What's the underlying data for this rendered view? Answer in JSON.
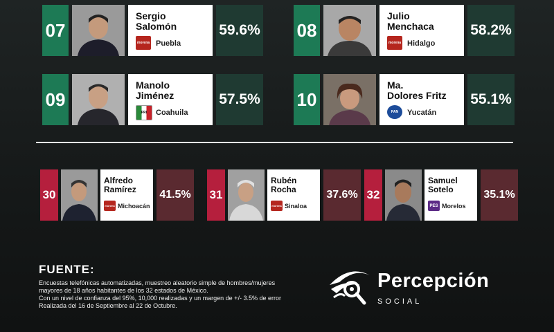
{
  "top_candidates": [
    {
      "rank": "07",
      "first": "Sergio",
      "last": "Salomón",
      "party": "morena",
      "state": "Puebla",
      "pct": "59.6%"
    },
    {
      "rank": "08",
      "first": "Julio",
      "last": "Menchaca",
      "party": "morena",
      "state": "Hidalgo",
      "pct": "58.2%"
    },
    {
      "rank": "09",
      "first": "Manolo",
      "last": "Jiménez",
      "party": "PRI",
      "state": "Coahuila",
      "pct": "57.5%"
    },
    {
      "rank": "10",
      "first": "Ma.",
      "last": "Dolores Fritz",
      "party": "PAN",
      "state": "Yucatán",
      "pct": "55.1%"
    }
  ],
  "bottom_candidates": [
    {
      "rank": "30",
      "first": "Alfredo",
      "last": "Ramírez",
      "party": "morena",
      "state": "Michoacán",
      "pct": "41.5%"
    },
    {
      "rank": "31",
      "first": "Rubén",
      "last": "Rocha",
      "party": "morena",
      "state": "Sinaloa",
      "pct": "37.6%"
    },
    {
      "rank": "32",
      "first": "Samuel",
      "last": "Sotelo",
      "party": "PES",
      "state": "Morelos",
      "pct": "35.1%"
    }
  ],
  "party_colors": {
    "morena": "#b5261e",
    "PRI": "#ffffff",
    "PAN": "#1d4c9a",
    "PES": "#5b2a86"
  },
  "fuente": {
    "title": "FUENTE:",
    "lines": [
      "Encuestas telefónicas automatizadas, muestreo aleatorio simple de hombres/mujeres",
      "mayores de 18 años habitantes de los 32 estados de México.",
      "Con un nivel de confianza del 95%, 10,000 realizadas y un margen de +/- 3.5% de error",
      "Realizada del 16 de Septiembre al 22 de Octubre."
    ]
  },
  "brand": {
    "name": "Percepción",
    "sub": "SOCIAL"
  }
}
